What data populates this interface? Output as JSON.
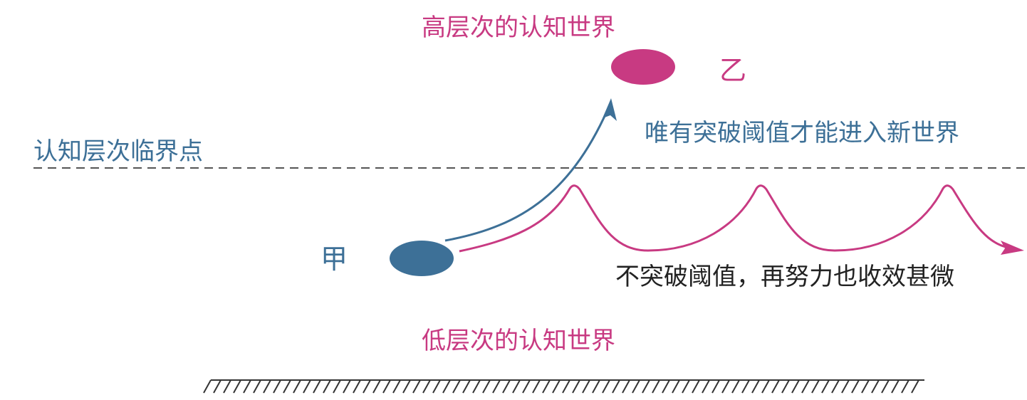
{
  "labels": {
    "high_world": "高层次的认知世界",
    "node_b": "乙",
    "breakthrough_note": "唯有突破阈值才能进入新世界",
    "critical_point": "认知层次临界点",
    "node_a": "甲",
    "effort_note": "不突破阈值，再努力也收效甚微",
    "low_world": "低层次的认知世界"
  },
  "colors": {
    "magenta": "#c83a82",
    "blue": "#3d7097",
    "text_dark": "#222222",
    "dashed_line": "#555555",
    "ground": "#333333"
  }
}
